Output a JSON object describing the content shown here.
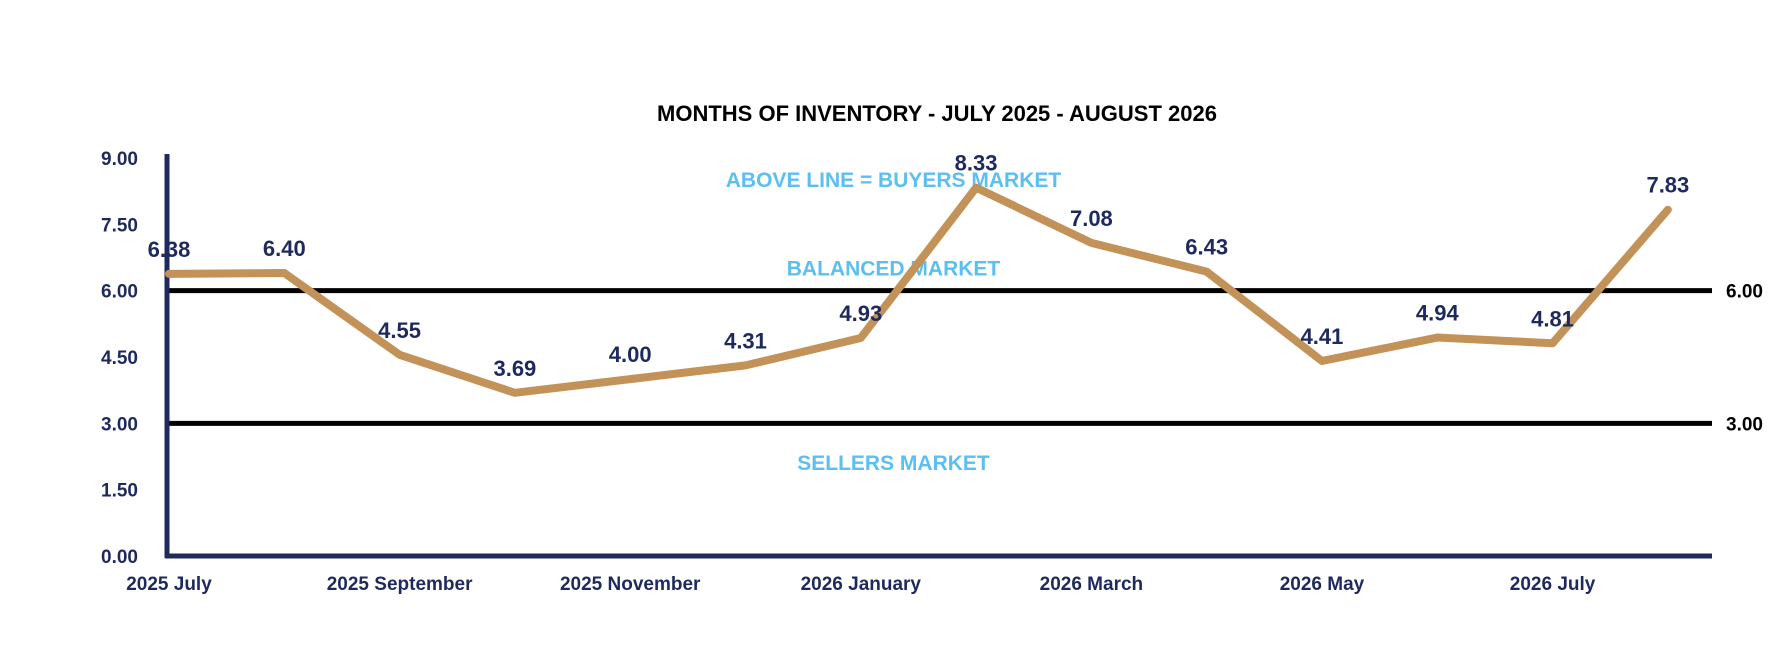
{
  "chart_data": {
    "type": "line",
    "title": "MONTHS OF INVENTORY - JULY 2025 - AUGUST 2026",
    "categories": [
      "2025 July",
      "",
      "2025 September",
      "",
      "2025 November",
      "",
      "2026 January",
      "",
      "2026 March",
      "",
      "2026 May",
      "",
      "2026 July",
      ""
    ],
    "series": [
      {
        "values": [
          6.38,
          6.4,
          4.55,
          3.69,
          4.0,
          4.31,
          4.93,
          8.33,
          7.08,
          6.43,
          4.41,
          4.94,
          4.81,
          7.83
        ],
        "labels": [
          "6.38",
          "6.40",
          "4.55",
          "3.69",
          "4.00",
          "4.31",
          "4.93",
          "8.33",
          "7.08",
          "6.43",
          "4.41",
          "4.94",
          "4.81",
          "7.83"
        ]
      }
    ],
    "ylim": [
      0,
      9
    ],
    "yticks": [
      "0.00",
      "1.50",
      "3.00",
      "4.50",
      "6.00",
      "7.50",
      "9.00"
    ],
    "reference_lines": [
      {
        "value": 6,
        "label": "6.00"
      },
      {
        "value": 3,
        "label": "3.00"
      }
    ],
    "zones": [
      {
        "text": "ABOVE LINE = BUYERS MARKET",
        "value": 8.5
      },
      {
        "text": "BALANCED MARKET",
        "value": 6.5
      },
      {
        "text": "SELLERS MARKET",
        "value": 2.1
      }
    ],
    "grid": false,
    "colors": {
      "line": "#c29259",
      "axis": "#1e2a5e",
      "text": "#1e2a5e",
      "zone": "#5bbff0",
      "reference": "#000000"
    }
  }
}
